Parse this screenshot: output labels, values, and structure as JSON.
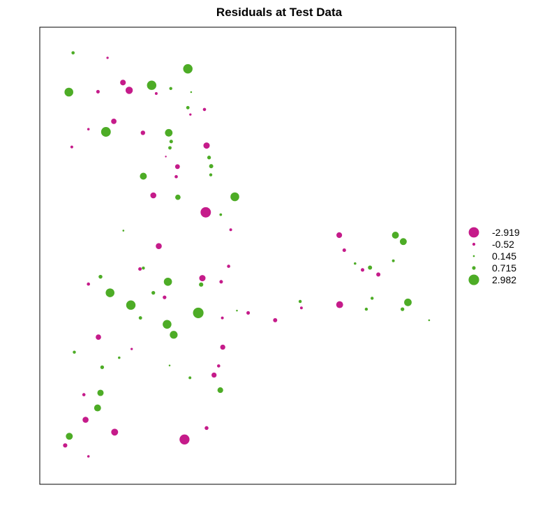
{
  "colors": {
    "negative": "#C51B8A",
    "positive": "#4DAC26",
    "frame": "#000000",
    "background": "#FFFFFF"
  },
  "chart_data": {
    "type": "scatter",
    "title": "Residuals at Test Data",
    "xlabel": "",
    "ylabel": "",
    "grid": false,
    "axes_visible": false,
    "x_range": [
      0,
      100
    ],
    "y_range": [
      0,
      100
    ],
    "size_encodes": "residual magnitude",
    "color_encodes": "residual sign",
    "legend": {
      "placement": "right",
      "entries": [
        {
          "label": "-2.919",
          "value": -2.919
        },
        {
          "label": "-0.52",
          "value": -0.52
        },
        {
          "label": "0.145",
          "value": 0.145
        },
        {
          "label": "0.715",
          "value": 0.715
        },
        {
          "label": "2.982",
          "value": 2.982
        }
      ]
    },
    "points": [
      {
        "x": 8.0,
        "y": 94.4,
        "r": 0.6
      },
      {
        "x": 16.3,
        "y": 93.3,
        "r": -0.3
      },
      {
        "x": 7.0,
        "y": 85.8,
        "r": 2.4
      },
      {
        "x": 14.0,
        "y": 85.9,
        "r": -0.7
      },
      {
        "x": 20.0,
        "y": 87.9,
        "r": -1.4
      },
      {
        "x": 21.5,
        "y": 86.2,
        "r": -1.9
      },
      {
        "x": 26.9,
        "y": 87.3,
        "r": 2.6
      },
      {
        "x": 28.0,
        "y": 85.5,
        "r": -0.45
      },
      {
        "x": 31.5,
        "y": 86.6,
        "r": 0.55
      },
      {
        "x": 35.6,
        "y": 90.9,
        "r": 2.6
      },
      {
        "x": 36.4,
        "y": 85.8,
        "r": 0.12
      },
      {
        "x": 35.6,
        "y": 82.4,
        "r": 0.65
      },
      {
        "x": 39.6,
        "y": 82.0,
        "r": -0.6
      },
      {
        "x": 36.2,
        "y": 80.9,
        "r": -0.3
      },
      {
        "x": 17.8,
        "y": 79.4,
        "r": -1.3
      },
      {
        "x": 11.7,
        "y": 77.7,
        "r": -0.35
      },
      {
        "x": 15.9,
        "y": 77.1,
        "r": 2.7
      },
      {
        "x": 24.8,
        "y": 76.9,
        "r": -1.0
      },
      {
        "x": 31.0,
        "y": 76.9,
        "r": 2.0
      },
      {
        "x": 31.6,
        "y": 75.0,
        "r": 0.7
      },
      {
        "x": 31.3,
        "y": 73.6,
        "r": 0.65
      },
      {
        "x": 7.7,
        "y": 73.8,
        "r": -0.45
      },
      {
        "x": 40.1,
        "y": 74.1,
        "r": -1.6
      },
      {
        "x": 30.3,
        "y": 71.7,
        "r": -0.1
      },
      {
        "x": 40.7,
        "y": 71.5,
        "r": 0.75
      },
      {
        "x": 33.1,
        "y": 69.5,
        "r": -1.1
      },
      {
        "x": 41.2,
        "y": 69.6,
        "r": 0.9
      },
      {
        "x": 24.9,
        "y": 67.4,
        "r": 1.8
      },
      {
        "x": 32.8,
        "y": 67.3,
        "r": -0.6
      },
      {
        "x": 41.1,
        "y": 67.7,
        "r": 0.55
      },
      {
        "x": 27.3,
        "y": 63.2,
        "r": -1.5
      },
      {
        "x": 33.2,
        "y": 62.8,
        "r": 1.3
      },
      {
        "x": 46.9,
        "y": 62.9,
        "r": 2.4
      },
      {
        "x": 39.9,
        "y": 59.5,
        "r": -2.919
      },
      {
        "x": 43.5,
        "y": 59.0,
        "r": 0.4
      },
      {
        "x": 45.9,
        "y": 55.7,
        "r": -0.45
      },
      {
        "x": 20.1,
        "y": 55.5,
        "r": 0.15
      },
      {
        "x": 28.6,
        "y": 52.1,
        "r": -1.5
      },
      {
        "x": 24.1,
        "y": 47.1,
        "r": -0.7
      },
      {
        "x": 24.9,
        "y": 47.3,
        "r": 0.55
      },
      {
        "x": 14.6,
        "y": 45.4,
        "r": 0.8
      },
      {
        "x": 11.7,
        "y": 43.8,
        "r": -0.6
      },
      {
        "x": 30.8,
        "y": 44.3,
        "r": 2.2
      },
      {
        "x": 39.1,
        "y": 45.1,
        "r": -1.6
      },
      {
        "x": 38.8,
        "y": 43.7,
        "r": 0.95
      },
      {
        "x": 43.6,
        "y": 44.3,
        "r": -0.7
      },
      {
        "x": 45.4,
        "y": 47.7,
        "r": -0.6
      },
      {
        "x": 16.9,
        "y": 41.9,
        "r": 2.4
      },
      {
        "x": 27.3,
        "y": 41.9,
        "r": 0.75
      },
      {
        "x": 30.0,
        "y": 40.9,
        "r": -0.75
      },
      {
        "x": 21.9,
        "y": 39.2,
        "r": 2.6
      },
      {
        "x": 38.1,
        "y": 37.5,
        "r": 2.982
      },
      {
        "x": 47.4,
        "y": 38.0,
        "r": 0.12
      },
      {
        "x": 50.1,
        "y": 37.5,
        "r": -0.7
      },
      {
        "x": 24.2,
        "y": 36.4,
        "r": 0.65
      },
      {
        "x": 43.9,
        "y": 36.4,
        "r": -0.45
      },
      {
        "x": 30.6,
        "y": 35.0,
        "r": 2.4
      },
      {
        "x": 32.2,
        "y": 32.7,
        "r": 2.1
      },
      {
        "x": 14.1,
        "y": 32.2,
        "r": -1.3
      },
      {
        "x": 44.0,
        "y": 30.0,
        "r": -1.2
      },
      {
        "x": 22.1,
        "y": 29.6,
        "r": -0.3
      },
      {
        "x": 8.3,
        "y": 28.9,
        "r": 0.55
      },
      {
        "x": 19.1,
        "y": 27.7,
        "r": 0.35
      },
      {
        "x": 31.2,
        "y": 26.0,
        "r": 0.12
      },
      {
        "x": 15.0,
        "y": 25.6,
        "r": 0.75
      },
      {
        "x": 43.0,
        "y": 25.9,
        "r": -0.6
      },
      {
        "x": 41.9,
        "y": 23.9,
        "r": -1.2
      },
      {
        "x": 36.1,
        "y": 23.3,
        "r": 0.45
      },
      {
        "x": 14.6,
        "y": 20.0,
        "r": 1.6
      },
      {
        "x": 43.4,
        "y": 20.6,
        "r": 1.4
      },
      {
        "x": 10.6,
        "y": 19.6,
        "r": -0.6
      },
      {
        "x": 13.9,
        "y": 16.7,
        "r": 1.8
      },
      {
        "x": 11.0,
        "y": 14.1,
        "r": -1.5
      },
      {
        "x": 18.0,
        "y": 11.4,
        "r": -1.8
      },
      {
        "x": 7.1,
        "y": 10.5,
        "r": 1.8
      },
      {
        "x": 40.1,
        "y": 12.3,
        "r": -0.8
      },
      {
        "x": 34.8,
        "y": 9.8,
        "r": -2.8
      },
      {
        "x": 6.1,
        "y": 8.5,
        "r": -0.95
      },
      {
        "x": 11.7,
        "y": 6.1,
        "r": -0.35
      },
      {
        "x": 72.0,
        "y": 54.5,
        "r": -1.4
      },
      {
        "x": 73.2,
        "y": 51.2,
        "r": -0.7
      },
      {
        "x": 75.8,
        "y": 48.3,
        "r": 0.35
      },
      {
        "x": 77.6,
        "y": 46.9,
        "r": -0.7
      },
      {
        "x": 79.4,
        "y": 47.4,
        "r": 0.9
      },
      {
        "x": 81.4,
        "y": 45.9,
        "r": -0.9
      },
      {
        "x": 85.0,
        "y": 48.9,
        "r": 0.45
      },
      {
        "x": 85.5,
        "y": 54.5,
        "r": 1.8
      },
      {
        "x": 87.4,
        "y": 53.1,
        "r": 1.8
      },
      {
        "x": 62.6,
        "y": 40.0,
        "r": 0.55
      },
      {
        "x": 62.9,
        "y": 38.6,
        "r": -0.45
      },
      {
        "x": 56.6,
        "y": 35.9,
        "r": -0.9
      },
      {
        "x": 72.1,
        "y": 39.3,
        "r": -1.8
      },
      {
        "x": 78.5,
        "y": 38.3,
        "r": 0.55
      },
      {
        "x": 79.9,
        "y": 40.7,
        "r": 0.55
      },
      {
        "x": 87.2,
        "y": 38.3,
        "r": 0.75
      },
      {
        "x": 88.5,
        "y": 39.8,
        "r": 2.0
      },
      {
        "x": 93.6,
        "y": 35.9,
        "r": 0.15
      }
    ]
  }
}
